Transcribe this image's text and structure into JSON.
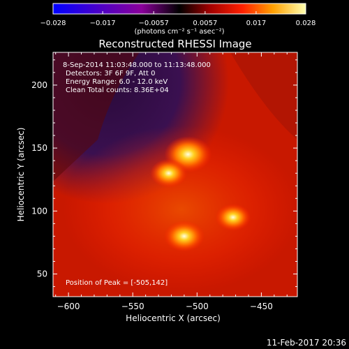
{
  "chart_data": {
    "type": "heatmap",
    "title": "Reconstructed RHESSI Image",
    "xlabel": "Heliocentric X (arcsec)",
    "ylabel": "Heliocentric Y (arcsec)",
    "xlim": [
      -612,
      -422
    ],
    "ylim": [
      32,
      226
    ],
    "x_ticks": [
      {
        "value": -600,
        "label": "−600"
      },
      {
        "value": -550,
        "label": "−550"
      },
      {
        "value": -500,
        "label": "−500"
      },
      {
        "value": -450,
        "label": "−450"
      }
    ],
    "y_ticks": [
      {
        "value": 50,
        "label": "50"
      },
      {
        "value": 100,
        "label": "100"
      },
      {
        "value": 150,
        "label": "150"
      },
      {
        "value": 200,
        "label": "200"
      }
    ],
    "colorbar": {
      "range": [
        -0.028,
        0.028
      ],
      "units": "(photons cm⁻² s⁻¹ asec⁻²)",
      "ticks": [
        {
          "value": -0.028,
          "label": "−0.028"
        },
        {
          "value": -0.017,
          "label": "−0.017"
        },
        {
          "value": -0.0057,
          "label": "−0.0057"
        },
        {
          "value": 0.0057,
          "label": "0.0057"
        },
        {
          "value": 0.017,
          "label": "0.017"
        },
        {
          "value": 0.028,
          "label": "0.028"
        }
      ]
    },
    "annotations": [
      "8-Sep-2014 11:03:48.000 to 11:13:48.000",
      "Detectors: 3F 6F 9F, Att 0",
      "Energy Range: 6.0 - 12.0 keV",
      "Clean     Total counts: 8.36E+04"
    ],
    "peak_label": "Position of Peak = [-505,142]",
    "sources": [
      {
        "x": -507,
        "y": 145,
        "intensity": 0.028
      },
      {
        "x": -522,
        "y": 130,
        "intensity": 0.022
      },
      {
        "x": -510,
        "y": 80,
        "intensity": 0.024
      },
      {
        "x": -472,
        "y": 95,
        "intensity": 0.021
      }
    ]
  },
  "footer": {
    "timestamp": "11-Feb-2017 20:36"
  }
}
